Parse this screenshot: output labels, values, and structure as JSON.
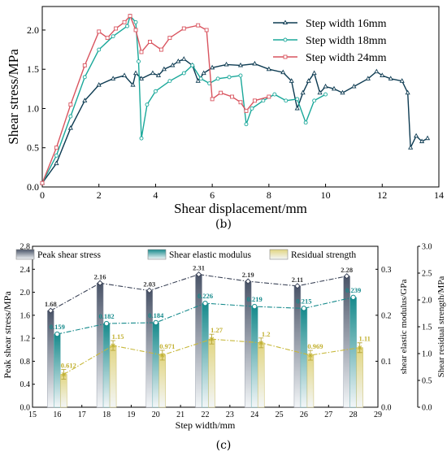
{
  "figure_b_label": "(b)",
  "figure_c_label": "(c)",
  "colors": {
    "s16": "#0d3b52",
    "s18": "#1aa89a",
    "s24": "#d9545f",
    "peak": "#5b6477",
    "elastic": "#168a8c",
    "residual": "#d8c956"
  },
  "chart_data": [
    {
      "type": "line",
      "xlabel": "Shear displacement/mm",
      "ylabel": "Shear stress/MPa",
      "xlim": [
        0,
        14
      ],
      "ylim": [
        0,
        2.3
      ],
      "xticks": [
        0,
        2,
        4,
        6,
        8,
        10,
        12,
        14
      ],
      "yticks": [
        0.0,
        0.5,
        1.0,
        1.5,
        2.0
      ],
      "legend_position": "top-right",
      "series": [
        {
          "name": "Step width 16mm",
          "marker": "triangle",
          "points": [
            [
              0,
              0.05
            ],
            [
              0.5,
              0.3
            ],
            [
              1,
              0.75
            ],
            [
              1.5,
              1.1
            ],
            [
              2,
              1.3
            ],
            [
              2.5,
              1.38
            ],
            [
              2.9,
              1.42
            ],
            [
              3.2,
              1.3
            ],
            [
              3.3,
              1.45
            ],
            [
              3.5,
              1.38
            ],
            [
              3.9,
              1.45
            ],
            [
              4.1,
              1.42
            ],
            [
              4.3,
              1.5
            ],
            [
              4.6,
              1.55
            ],
            [
              4.8,
              1.6
            ],
            [
              5.0,
              1.63
            ],
            [
              5.3,
              1.55
            ],
            [
              5.5,
              1.35
            ],
            [
              5.7,
              1.45
            ],
            [
              6.0,
              1.52
            ],
            [
              6.5,
              1.56
            ],
            [
              7.0,
              1.55
            ],
            [
              7.5,
              1.57
            ],
            [
              8.0,
              1.5
            ],
            [
              8.5,
              1.46
            ],
            [
              8.8,
              1.35
            ],
            [
              9.0,
              1.0
            ],
            [
              9.2,
              1.2
            ],
            [
              9.4,
              1.35
            ],
            [
              9.6,
              1.45
            ],
            [
              9.8,
              1.2
            ],
            [
              10.0,
              1.28
            ],
            [
              10.3,
              1.25
            ],
            [
              10.6,
              1.2
            ],
            [
              11.0,
              1.28
            ],
            [
              11.5,
              1.38
            ],
            [
              11.8,
              1.47
            ],
            [
              12.0,
              1.42
            ],
            [
              12.3,
              1.38
            ],
            [
              12.7,
              1.35
            ],
            [
              12.9,
              1.2
            ],
            [
              13.0,
              0.5
            ],
            [
              13.2,
              0.65
            ],
            [
              13.4,
              0.58
            ],
            [
              13.6,
              0.62
            ]
          ]
        },
        {
          "name": "Step width 18mm",
          "marker": "circle",
          "points": [
            [
              0,
              0.05
            ],
            [
              0.5,
              0.4
            ],
            [
              1,
              0.9
            ],
            [
              1.5,
              1.4
            ],
            [
              2,
              1.75
            ],
            [
              2.5,
              1.92
            ],
            [
              3.0,
              2.05
            ],
            [
              3.1,
              2.18
            ],
            [
              3.3,
              2.1
            ],
            [
              3.4,
              1.6
            ],
            [
              3.5,
              0.62
            ],
            [
              3.7,
              1.05
            ],
            [
              4.0,
              1.22
            ],
            [
              4.5,
              1.35
            ],
            [
              5.0,
              1.45
            ],
            [
              5.3,
              1.55
            ],
            [
              5.6,
              1.38
            ],
            [
              5.9,
              1.32
            ],
            [
              6.2,
              1.38
            ],
            [
              6.6,
              1.4
            ],
            [
              7.0,
              1.42
            ],
            [
              7.2,
              0.8
            ],
            [
              7.4,
              1.0
            ],
            [
              7.8,
              1.1
            ],
            [
              8.2,
              1.18
            ],
            [
              8.6,
              1.1
            ],
            [
              9.0,
              1.12
            ],
            [
              9.3,
              0.82
            ],
            [
              9.6,
              1.1
            ],
            [
              10.0,
              1.18
            ]
          ]
        },
        {
          "name": "Step width 24mm",
          "marker": "square",
          "points": [
            [
              0,
              0.05
            ],
            [
              0.5,
              0.5
            ],
            [
              1,
              1.05
            ],
            [
              1.5,
              1.55
            ],
            [
              2,
              1.98
            ],
            [
              2.3,
              1.9
            ],
            [
              2.6,
              2.02
            ],
            [
              2.9,
              2.1
            ],
            [
              3.1,
              2.18
            ],
            [
              3.3,
              2.0
            ],
            [
              3.5,
              1.72
            ],
            [
              3.8,
              1.85
            ],
            [
              4.2,
              1.75
            ],
            [
              4.5,
              1.9
            ],
            [
              5.0,
              2.02
            ],
            [
              5.5,
              2.06
            ],
            [
              5.8,
              2.0
            ],
            [
              6.0,
              1.12
            ],
            [
              6.3,
              1.2
            ],
            [
              6.7,
              1.15
            ],
            [
              7.0,
              1.08
            ],
            [
              7.2,
              0.97
            ],
            [
              7.5,
              1.1
            ],
            [
              8.0,
              1.15
            ]
          ]
        }
      ]
    },
    {
      "type": "bar",
      "xlabel": "Step width/mm",
      "ylabel": "Peak shear stress/MPa",
      "y2label": "shear elastic modulus/GPa",
      "y3label": "Shear residual strength/MPa",
      "xlim": [
        15,
        29
      ],
      "xticks": [
        15,
        16,
        17,
        18,
        19,
        20,
        21,
        22,
        23,
        24,
        25,
        26,
        27,
        28,
        29
      ],
      "ylim": [
        0,
        2.8
      ],
      "yticks": [
        "0.0",
        "0.4",
        "0.8",
        "1.2",
        "1.6",
        "2.0",
        "2.4",
        "2.8"
      ],
      "y2lim": [
        0,
        0.35
      ],
      "y2ticks": [
        "0.0",
        "0.1",
        "0.2",
        "0.3"
      ],
      "y3lim": [
        0,
        3.0
      ],
      "y3ticks": [
        "0.0",
        "0.5",
        "1.0",
        "1.5",
        "2.0",
        "2.5",
        "3.0"
      ],
      "categories": [
        16,
        18,
        20,
        22,
        24,
        26,
        28
      ],
      "legend_position": "top",
      "series": [
        {
          "name": "Peak shear stress",
          "values": [
            1.68,
            2.16,
            2.03,
            2.31,
            2.19,
            2.11,
            2.28
          ],
          "labels": [
            "1.68",
            "2.16",
            "2.03",
            "2.31",
            "2.19",
            "2.11",
            "2.28"
          ]
        },
        {
          "name": "Shear elastic modulus",
          "values": [
            0.159,
            0.182,
            0.184,
            0.226,
            0.219,
            0.215,
            0.239
          ],
          "labels": [
            "0.159",
            "0.182",
            "0.184",
            "0.226",
            "0.219",
            "0.215",
            "0.239"
          ]
        },
        {
          "name": "Residual strength",
          "values": [
            0.612,
            1.15,
            0.971,
            1.27,
            1.2,
            0.969,
            1.11
          ],
          "labels": [
            "0.612",
            "1.15",
            "0.971",
            "1.27",
            "1.2",
            "0.969",
            "1.11"
          ]
        }
      ]
    }
  ]
}
